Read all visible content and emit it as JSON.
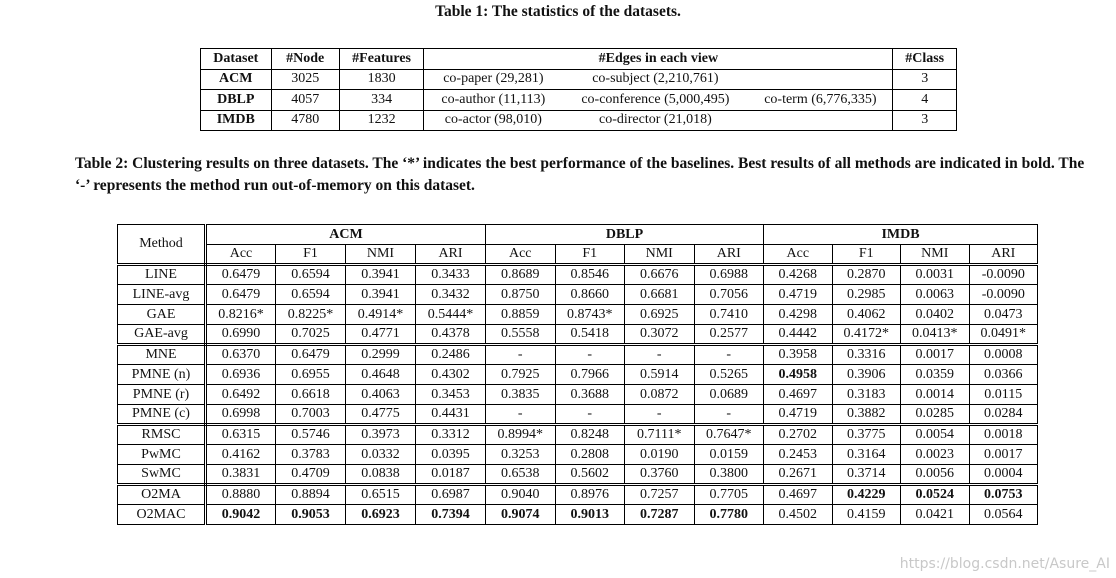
{
  "table1": {
    "caption": "Table 1: The statistics of the datasets.",
    "header": [
      "Dataset",
      "#Node",
      "#Features",
      "#Edges in each view",
      "#Class"
    ],
    "rows": [
      {
        "dataset": "ACM",
        "nodes": "3025",
        "features": "1830",
        "views": [
          "co-paper (29,281)",
          "co-subject (2,210,761)"
        ],
        "classes": "3"
      },
      {
        "dataset": "DBLP",
        "nodes": "4057",
        "features": "334",
        "views": [
          "co-author (11,113)",
          "co-conference (5,000,495)",
          "co-term (6,776,335)"
        ],
        "classes": "4"
      },
      {
        "dataset": "IMDB",
        "nodes": "4780",
        "features": "1232",
        "views": [
          "co-actor (98,010)",
          "co-director (21,018)"
        ],
        "classes": "3"
      }
    ]
  },
  "table2": {
    "caption": "Table 2: Clustering results on three datasets. The ‘*’ indicates the best performance of the baselines. Best results of all methods are indicated in bold. The ‘-’ represents the method run out-of-memory on this dataset.",
    "method_header": "Method",
    "groups": [
      "ACM",
      "DBLP",
      "IMDB"
    ],
    "metrics": [
      "Acc",
      "F1",
      "NMI",
      "ARI"
    ],
    "row_groups": [
      [
        {
          "method": "LINE",
          "cells": [
            "0.6479",
            "0.6594",
            "0.3941",
            "0.3433",
            "0.8689",
            "0.8546",
            "0.6676",
            "0.6988",
            "0.4268",
            "0.2870",
            "0.0031",
            "-0.0090"
          ]
        },
        {
          "method": "LINE-avg",
          "cells": [
            "0.6479",
            "0.6594",
            "0.3941",
            "0.3432",
            "0.8750",
            "0.8660",
            "0.6681",
            "0.7056",
            "0.4719",
            "0.2985",
            "0.0063",
            "-0.0090"
          ]
        },
        {
          "method": "GAE",
          "cells": [
            "0.8216*",
            "0.8225*",
            "0.4914*",
            "0.5444*",
            "0.8859",
            "0.8743*",
            "0.6925",
            "0.7410",
            "0.4298",
            "0.4062",
            "0.0402",
            "0.0473"
          ]
        },
        {
          "method": "GAE-avg",
          "cells": [
            "0.6990",
            "0.7025",
            "0.4771",
            "0.4378",
            "0.5558",
            "0.5418",
            "0.3072",
            "0.2577",
            "0.4442",
            "0.4172*",
            "0.0413*",
            "0.0491*"
          ]
        }
      ],
      [
        {
          "method": "MNE",
          "cells": [
            "0.6370",
            "0.6479",
            "0.2999",
            "0.2486",
            "-",
            "-",
            "-",
            "-",
            "0.3958",
            "0.3316",
            "0.0017",
            "0.0008"
          ]
        },
        {
          "method": "PMNE (n)",
          "cells": [
            "0.6936",
            "0.6955",
            "0.4648",
            "0.4302",
            "0.7925",
            "0.7966",
            "0.5914",
            "0.5265",
            "0.4958",
            "0.3906",
            "0.0359",
            "0.0366"
          ],
          "bold": [
            8
          ]
        },
        {
          "method": "PMNE (r)",
          "cells": [
            "0.6492",
            "0.6618",
            "0.4063",
            "0.3453",
            "0.3835",
            "0.3688",
            "0.0872",
            "0.0689",
            "0.4697",
            "0.3183",
            "0.0014",
            "0.0115"
          ]
        },
        {
          "method": "PMNE (c)",
          "cells": [
            "0.6998",
            "0.7003",
            "0.4775",
            "0.4431",
            "-",
            "-",
            "-",
            "-",
            "0.4719",
            "0.3882",
            "0.0285",
            "0.0284"
          ]
        }
      ],
      [
        {
          "method": "RMSC",
          "cells": [
            "0.6315",
            "0.5746",
            "0.3973",
            "0.3312",
            "0.8994*",
            "0.8248",
            "0.7111*",
            "0.7647*",
            "0.2702",
            "0.3775",
            "0.0054",
            "0.0018"
          ]
        },
        {
          "method": "PwMC",
          "cells": [
            "0.4162",
            "0.3783",
            "0.0332",
            "0.0395",
            "0.3253",
            "0.2808",
            "0.0190",
            "0.0159",
            "0.2453",
            "0.3164",
            "0.0023",
            "0.0017"
          ]
        },
        {
          "method": "SwMC",
          "cells": [
            "0.3831",
            "0.4709",
            "0.0838",
            "0.0187",
            "0.6538",
            "0.5602",
            "0.3760",
            "0.3800",
            "0.2671",
            "0.3714",
            "0.0056",
            "0.0004"
          ]
        }
      ],
      [
        {
          "method": "O2MA",
          "cells": [
            "0.8880",
            "0.8894",
            "0.6515",
            "0.6987",
            "0.9040",
            "0.8976",
            "0.7257",
            "0.7705",
            "0.4697",
            "0.4229",
            "0.0524",
            "0.0753"
          ],
          "bold": [
            9,
            10,
            11
          ]
        },
        {
          "method": "O2MAC",
          "cells": [
            "0.9042",
            "0.9053",
            "0.6923",
            "0.7394",
            "0.9074",
            "0.9013",
            "0.7287",
            "0.7780",
            "0.4502",
            "0.4159",
            "0.0421",
            "0.0564"
          ],
          "bold": [
            0,
            1,
            2,
            3,
            4,
            5,
            6,
            7
          ]
        }
      ]
    ]
  },
  "watermark": "https://blog.csdn.net/Asure_AI"
}
